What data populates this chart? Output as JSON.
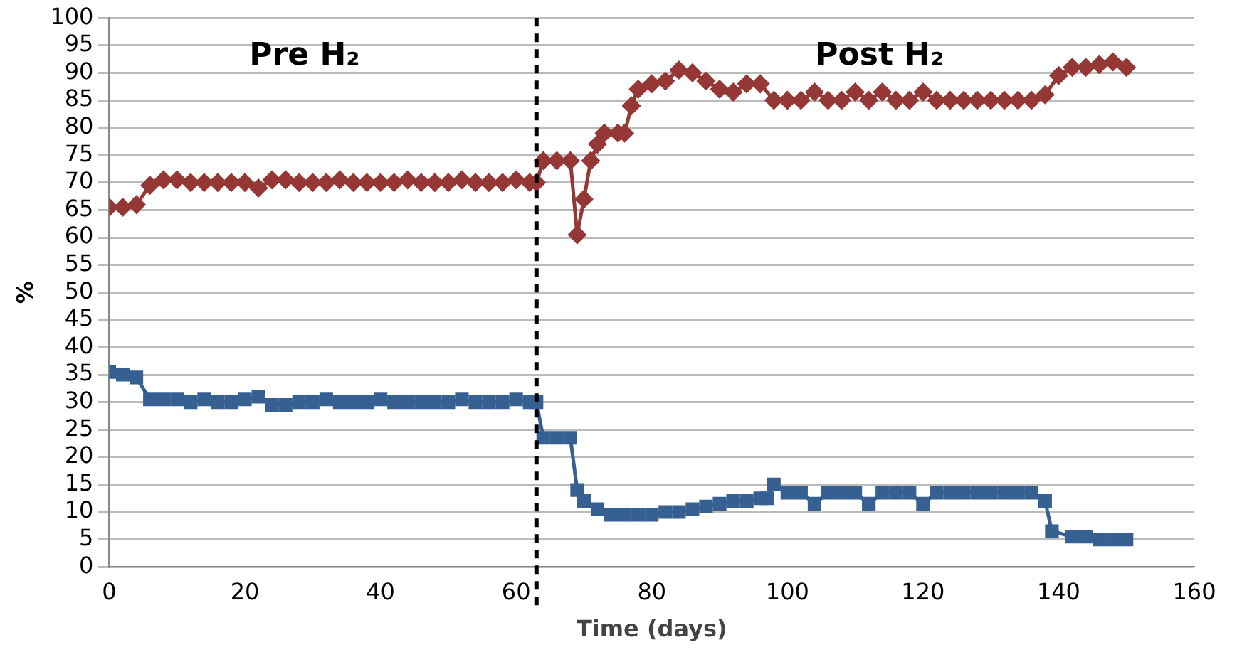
{
  "chart_data": {
    "type": "line",
    "xlabel": "Time (days)",
    "ylabel": "%",
    "xlim": [
      0,
      160
    ],
    "xticks": [
      0,
      20,
      40,
      60,
      80,
      100,
      120,
      140,
      160
    ],
    "ylim": [
      0,
      100
    ],
    "yticks": [
      0,
      5,
      10,
      15,
      20,
      25,
      30,
      35,
      40,
      45,
      50,
      55,
      60,
      65,
      70,
      75,
      80,
      85,
      90,
      95,
      100
    ],
    "grid": "y",
    "annotations": [
      "Pre H₂",
      "Post H₂"
    ],
    "ref_lines": [
      {
        "axis": "x",
        "value": 63,
        "color": "#000000",
        "line_style": "dashed"
      }
    ],
    "series": [
      {
        "color": "#953735",
        "marker": "diamond",
        "x": [
          0,
          2,
          4,
          6,
          8,
          10,
          12,
          14,
          16,
          18,
          20,
          22,
          24,
          26,
          28,
          30,
          32,
          34,
          36,
          38,
          40,
          42,
          44,
          46,
          48,
          50,
          52,
          54,
          56,
          58,
          60,
          62,
          63,
          64,
          66,
          68,
          69,
          70,
          71,
          72,
          73,
          75,
          76,
          77,
          78,
          80,
          82,
          84,
          86,
          88,
          90,
          92,
          94,
          96,
          98,
          100,
          102,
          104,
          106,
          108,
          110,
          112,
          114,
          116,
          118,
          120,
          122,
          124,
          126,
          128,
          130,
          132,
          134,
          136,
          138,
          140,
          142,
          144,
          146,
          148,
          150
        ],
        "values": [
          65.5,
          65.5,
          66,
          69.5,
          70.5,
          70.5,
          70,
          70,
          70,
          70,
          70,
          69,
          70.5,
          70.5,
          70,
          70,
          70,
          70.5,
          70,
          70,
          70,
          70,
          70.5,
          70,
          70,
          70,
          70.5,
          70,
          70,
          70,
          70.5,
          70,
          70,
          74,
          74,
          74,
          60.5,
          67,
          74,
          77,
          79,
          79,
          79,
          84,
          87,
          88,
          88.5,
          90.5,
          90,
          88.5,
          87,
          86.5,
          88,
          88,
          85,
          85,
          85,
          86.5,
          85,
          85,
          86.5,
          85,
          86.5,
          85,
          85,
          86.5,
          85,
          85,
          85,
          85,
          85,
          85,
          85,
          85,
          86,
          89.5,
          91,
          91,
          91.5,
          92,
          91
        ]
      },
      {
        "color": "#366092",
        "marker": "square",
        "x": [
          0,
          2,
          4,
          6,
          8,
          10,
          12,
          14,
          16,
          18,
          20,
          22,
          24,
          26,
          28,
          30,
          32,
          34,
          36,
          38,
          40,
          42,
          44,
          46,
          48,
          50,
          52,
          54,
          56,
          58,
          60,
          62,
          63,
          64,
          66,
          68,
          69,
          70,
          72,
          74,
          76,
          78,
          80,
          82,
          84,
          86,
          88,
          90,
          92,
          94,
          96,
          97,
          98,
          100,
          102,
          104,
          106,
          108,
          110,
          112,
          114,
          116,
          118,
          120,
          122,
          124,
          126,
          128,
          130,
          132,
          134,
          136,
          138,
          139,
          142,
          144,
          146,
          148,
          150
        ],
        "values": [
          35.5,
          35,
          34.5,
          30.5,
          30.5,
          30.5,
          30,
          30.5,
          30,
          30,
          30.5,
          31,
          29.5,
          29.5,
          30,
          30,
          30.5,
          30,
          30,
          30,
          30.5,
          30,
          30,
          30,
          30,
          30,
          30.5,
          30,
          30,
          30,
          30.5,
          30,
          30,
          23.5,
          23.5,
          23.5,
          14,
          12,
          10.5,
          9.5,
          9.5,
          9.5,
          9.5,
          10,
          10,
          10.5,
          11,
          11.5,
          12,
          12,
          12.5,
          12.5,
          15,
          13.5,
          13.5,
          11.5,
          13.5,
          13.5,
          13.5,
          11.5,
          13.5,
          13.5,
          13.5,
          11.5,
          13.5,
          13.5,
          13.5,
          13.5,
          13.5,
          13.5,
          13.5,
          13.5,
          12,
          6.5,
          5.5,
          5.5,
          5,
          5,
          5
        ]
      }
    ]
  }
}
